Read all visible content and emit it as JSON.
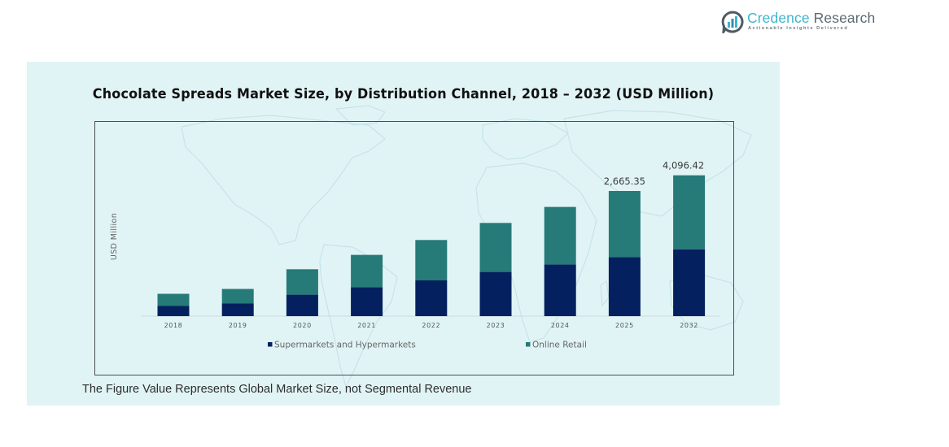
{
  "brand": {
    "name_part1": "Credence",
    "name_part2": "Research",
    "tagline": "Actionable Insights Delivered",
    "icon": "bar-chart-bubble-icon",
    "colors": {
      "primary": "#3db5cf",
      "secondary": "#5d6a73"
    }
  },
  "footnote": "The Figure Value Represents Global Market Size, not Segmental Revenue",
  "chart_data": {
    "type": "bar",
    "stacked": true,
    "title": "Chocolate Spreads Market Size, by Distribution Channel, 2018 – 2032 (USD Million)",
    "xlabel": "",
    "ylabel": "USD Million",
    "categories": [
      "2018",
      "2019",
      "2020",
      "2021",
      "2022",
      "2023",
      "2024",
      "2025",
      "2032"
    ],
    "series": [
      {
        "name": "Supermarkets and Hypermarkets",
        "color": "#04205e",
        "values": [
          216,
          268,
          457,
          618,
          762,
          942,
          1103,
          1257,
          1946
        ]
      },
      {
        "name": "Online Retail",
        "color": "#267a78",
        "values": [
          260,
          312,
          542,
          687,
          860,
          1044,
          1224,
          1408.35,
          2150.42
        ]
      }
    ],
    "totals": [
      476,
      580,
      999,
      1305,
      1622,
      1986,
      2327,
      2665.35,
      4096.42
    ],
    "data_labels": {
      "2025": "2,665.35",
      "2032": "4,096.42"
    },
    "ylim": [
      0,
      3000
    ],
    "y_axis_visible": false,
    "grid": false,
    "legend_position": "bottom",
    "note": "2032 bar is visually compressed (exceeds axis range)"
  }
}
